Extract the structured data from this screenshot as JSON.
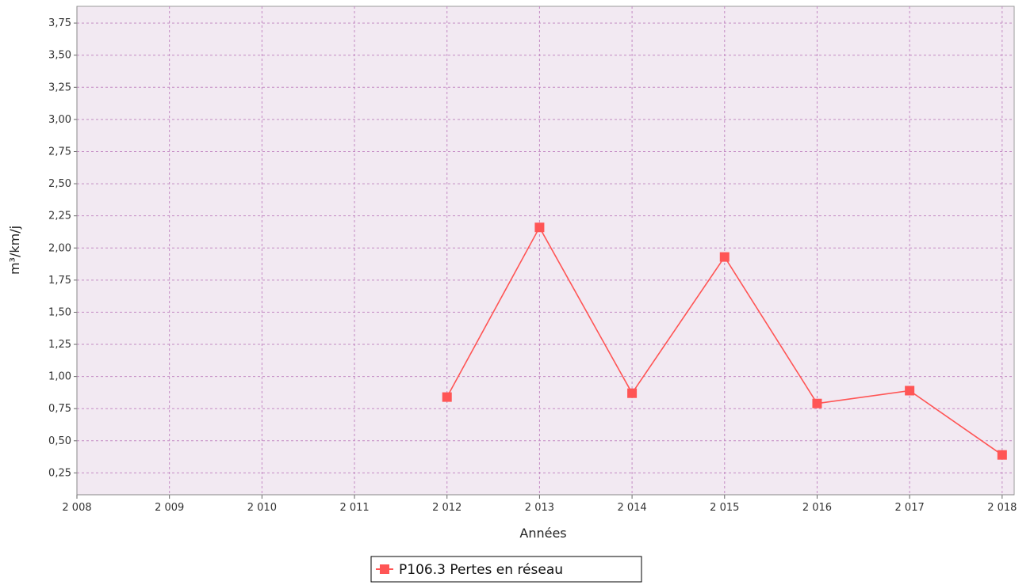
{
  "chart_data": {
    "type": "line",
    "xlabel": "Années",
    "ylabel": "m³/km/j",
    "x_ticks": [
      {
        "value": 2008,
        "label": "2 008"
      },
      {
        "value": 2009,
        "label": "2 009"
      },
      {
        "value": 2010,
        "label": "2 010"
      },
      {
        "value": 2011,
        "label": "2 011"
      },
      {
        "value": 2012,
        "label": "2 012"
      },
      {
        "value": 2013,
        "label": "2 013"
      },
      {
        "value": 2014,
        "label": "2 014"
      },
      {
        "value": 2015,
        "label": "2 015"
      },
      {
        "value": 2016,
        "label": "2 016"
      },
      {
        "value": 2017,
        "label": "2 017"
      },
      {
        "value": 2018,
        "label": "2 018"
      }
    ],
    "y_ticks": [
      {
        "value": 0.25,
        "label": "0,25"
      },
      {
        "value": 0.5,
        "label": "0,50"
      },
      {
        "value": 0.75,
        "label": "0,75"
      },
      {
        "value": 1.0,
        "label": "1,00"
      },
      {
        "value": 1.25,
        "label": "1,25"
      },
      {
        "value": 1.5,
        "label": "1,50"
      },
      {
        "value": 1.75,
        "label": "1,75"
      },
      {
        "value": 2.0,
        "label": "2,00"
      },
      {
        "value": 2.25,
        "label": "2,25"
      },
      {
        "value": 2.5,
        "label": "2,50"
      },
      {
        "value": 2.75,
        "label": "2,75"
      },
      {
        "value": 3.0,
        "label": "3,00"
      },
      {
        "value": 3.25,
        "label": "3,25"
      },
      {
        "value": 3.5,
        "label": "3,50"
      },
      {
        "value": 3.75,
        "label": "3,75"
      }
    ],
    "xlim": [
      2008,
      2018.13
    ],
    "ylim": [
      0.08,
      3.88
    ],
    "grid": true,
    "legend_position": "bottom-center",
    "series": [
      {
        "name": "P106.3 Pertes en réseau",
        "color": "#ff5555",
        "marker": "square",
        "x": [
          2012,
          2013,
          2014,
          2015,
          2016,
          2017,
          2018
        ],
        "values": [
          0.84,
          2.16,
          0.87,
          1.93,
          0.79,
          0.89,
          0.39
        ]
      }
    ],
    "colors": {
      "plot_background": "#f2e9f2",
      "grid": "#c38ac3",
      "axis": "#888888",
      "line": "#ff5555"
    }
  }
}
